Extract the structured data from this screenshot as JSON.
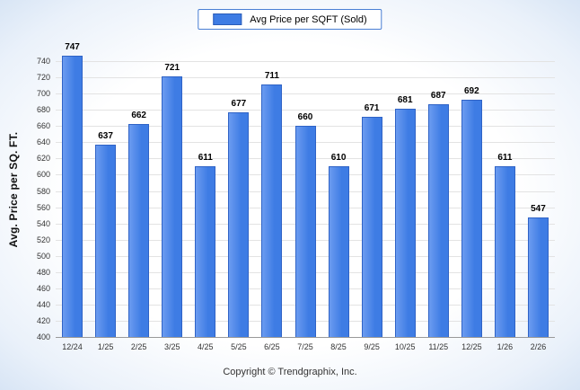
{
  "legend": {
    "label": "Avg Price per SQFT (Sold)",
    "swatch_color": "#3e7ce4"
  },
  "footer": {
    "copyright": "Copyright © Trendgraphix, Inc."
  },
  "chart_data": {
    "type": "bar",
    "title": "",
    "xlabel": "",
    "ylabel": "Avg. Price per SQ. FT.",
    "categories": [
      "12/24",
      "1/25",
      "2/25",
      "3/25",
      "4/25",
      "5/25",
      "6/25",
      "7/25",
      "8/25",
      "9/25",
      "10/25",
      "11/25",
      "12/25",
      "1/26",
      "2/26"
    ],
    "values": [
      747,
      637,
      662,
      721,
      611,
      677,
      711,
      660,
      610,
      671,
      681,
      687,
      692,
      611,
      547
    ],
    "ylim": [
      400,
      760
    ],
    "yticks": [
      400,
      420,
      440,
      460,
      480,
      500,
      520,
      540,
      560,
      580,
      600,
      620,
      640,
      660,
      680,
      700,
      720,
      740
    ],
    "bar_color": "#3e7ce4",
    "bar_border_color": "#2f63c6",
    "grid": true,
    "legend_position": "top"
  }
}
